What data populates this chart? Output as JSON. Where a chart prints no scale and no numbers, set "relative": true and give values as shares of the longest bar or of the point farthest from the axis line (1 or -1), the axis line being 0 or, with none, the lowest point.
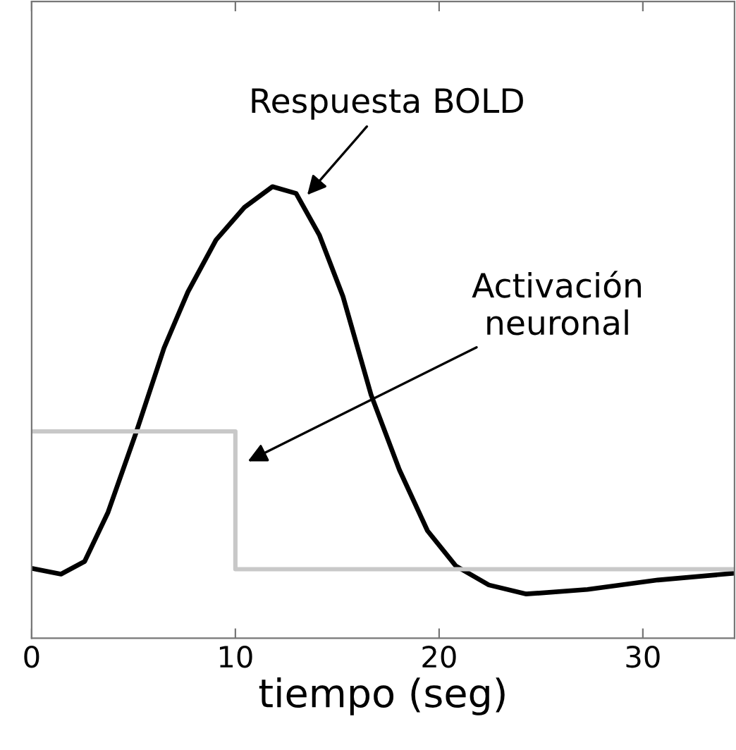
{
  "chart_data": {
    "type": "line",
    "xlabel": "tiempo (seg)",
    "relative": true,
    "xlim": [
      0,
      34.5
    ],
    "xticks": [
      0,
      10,
      20,
      30
    ],
    "tick_labels": "x",
    "grid": false,
    "legend": false,
    "marker": "none",
    "line_style": "solid",
    "series": [
      {
        "color": "#000000",
        "x": [
          0,
          1.44,
          2.6,
          3.75,
          5.13,
          6.5,
          7.67,
          9.05,
          10.44,
          11.82,
          12.98,
          14.13,
          15.28,
          16.66,
          18.05,
          19.43,
          20.82,
          22.44,
          24.28,
          27.28,
          30.74,
          34.5
        ],
        "values": [
          0.155,
          0.142,
          0.17,
          0.279,
          0.456,
          0.643,
          0.767,
          0.882,
          0.954,
          1.0,
          0.985,
          0.892,
          0.757,
          0.539,
          0.373,
          0.238,
          0.16,
          0.118,
          0.098,
          0.108,
          0.129,
          0.144
        ]
      },
      {
        "type": "step",
        "color": "#c8c8c8",
        "x": [
          0,
          10,
          34.5
        ],
        "values": [
          0.458,
          0.153,
          0.153
        ]
      }
    ],
    "annotations": [
      {
        "text": "Respuesta BOLD",
        "x": 13.4,
        "y": 0.975
      },
      {
        "text": "Activación\nneuronal",
        "x": 10.44,
        "y": 0.388
      }
    ]
  }
}
